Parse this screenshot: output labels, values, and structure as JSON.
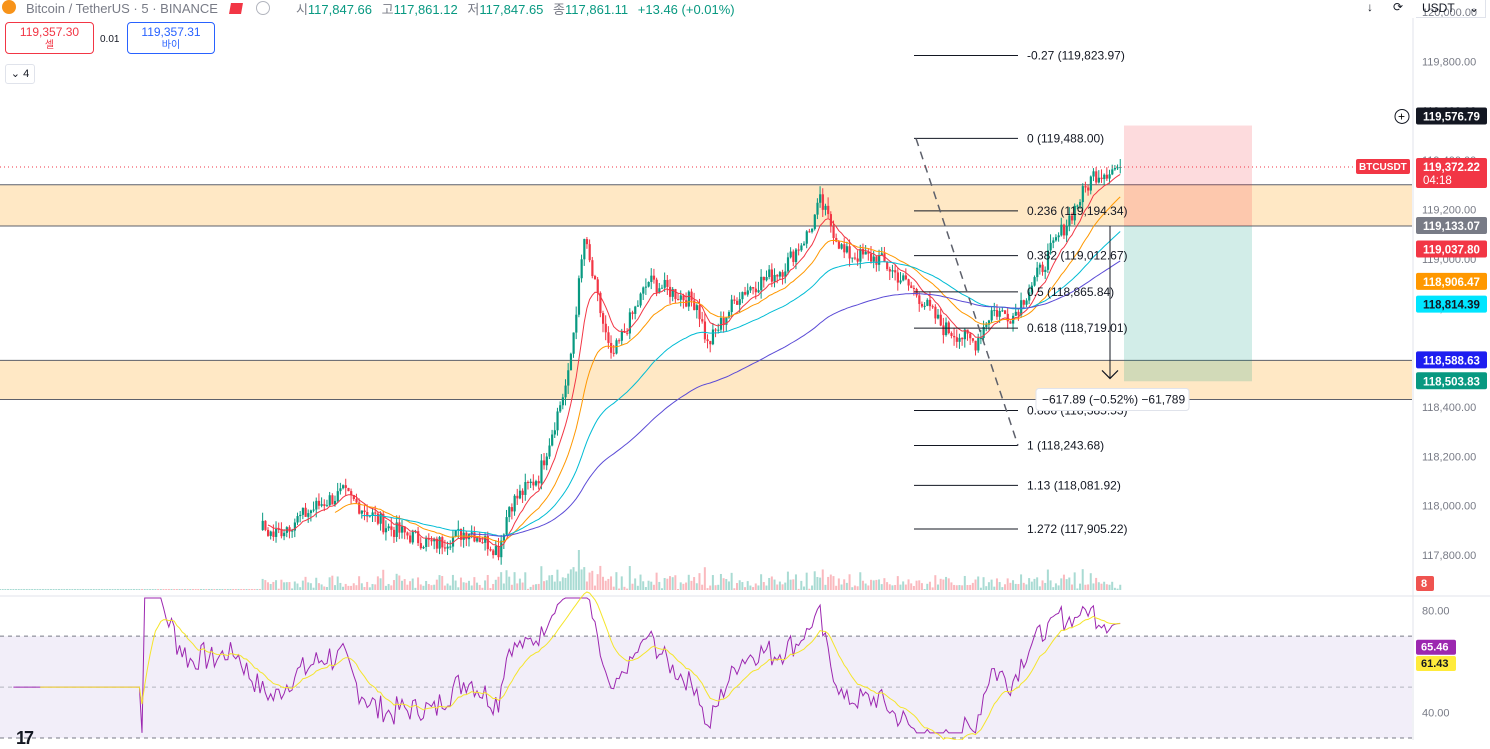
{
  "header": {
    "title": "Bitcoin / TetherUS · 5 · BINANCE",
    "open_label": "시",
    "open": "117,847.66",
    "high_label": "고",
    "high": "117,861.12",
    "low_label": "저",
    "low": "117,847.65",
    "close_label": "종",
    "close": "117,861.11",
    "change": "+13.46 (+0.01%)"
  },
  "trade": {
    "sell_price": "119,357.30",
    "sell_label": "셀",
    "buy_price": "119,357.31",
    "buy_label": "바이",
    "spread": "0.01"
  },
  "indicators_collapsed": "4",
  "currency": "USDT",
  "icons": {
    "down": "download-arrow-icon",
    "sync": "sync-icon",
    "add": "plus-circle-icon"
  },
  "colors": {
    "up": "#089981",
    "down": "#f23645",
    "ema_fast": "#f23645",
    "ema_mid": "#ff9800",
    "ema_slow": "#00bcd4",
    "ema_long": "#5b4bd6",
    "zone": "#ffe0b2",
    "rsi_line": "#9c27b0",
    "rsi_ma": "#f5e52b",
    "rsi_band": "#ede7f6"
  },
  "chart_data": [
    {
      "type": "candlestick",
      "instrument": "BTCUSDT",
      "interval": "5",
      "ylim": [
        117650,
        120000
      ],
      "y_ticks": [
        "117,800.00",
        "118,000.00",
        "118,200.00",
        "118,400.00",
        "118,600.00",
        "118,800.00",
        "119,000.00",
        "119,200.00",
        "119,400.00",
        "119,600.00",
        "119,800.00",
        "120,000.00"
      ],
      "anchors": [
        [
          0,
          117652,
          "flat"
        ],
        [
          53,
          117652,
          "flat"
        ],
        [
          58,
          117880,
          "up"
        ],
        [
          72,
          117860,
          "down"
        ],
        [
          88,
          117990,
          "up"
        ],
        [
          102,
          117880,
          "down"
        ],
        [
          120,
          118010,
          "up"
        ],
        [
          128,
          118050,
          "up"
        ],
        [
          145,
          117910,
          "down"
        ],
        [
          162,
          117840,
          "down"
        ],
        [
          175,
          117900,
          "up"
        ],
        [
          186,
          117820,
          "down"
        ],
        [
          190,
          118000,
          "up"
        ],
        [
          201,
          118120,
          "up"
        ],
        [
          212,
          118520,
          "up"
        ],
        [
          218,
          119080,
          "up"
        ],
        [
          228,
          118590,
          "down"
        ],
        [
          242,
          118910,
          "up"
        ],
        [
          260,
          118820,
          "down"
        ],
        [
          264,
          118650,
          "down"
        ],
        [
          276,
          118860,
          "up"
        ],
        [
          292,
          118960,
          "up"
        ],
        [
          302,
          119110,
          "up"
        ],
        [
          306,
          119230,
          "up"
        ],
        [
          315,
          119020,
          "down"
        ],
        [
          328,
          119000,
          "down"
        ],
        [
          342,
          118860,
          "down"
        ],
        [
          352,
          118720,
          "down"
        ],
        [
          364,
          118660,
          "down"
        ],
        [
          370,
          118790,
          "up"
        ],
        [
          378,
          118770,
          "down"
        ],
        [
          388,
          118950,
          "up"
        ],
        [
          395,
          119090,
          "up"
        ],
        [
          408,
          119340,
          "up"
        ],
        [
          418,
          119372,
          "up"
        ]
      ],
      "last_price": "119,372.22",
      "countdown": "04:18",
      "symbol_tag": "BTCUSDT",
      "volume_badge": "8",
      "price_labels": [
        {
          "value": "119,576.79",
          "price": 119576.79,
          "style": "crosshair"
        },
        {
          "value": "119,133.07",
          "price": 119133.07,
          "style": "gray"
        },
        {
          "value": "119,037.80",
          "price": 119037.8,
          "style": "red"
        },
        {
          "value": "118,906.47",
          "price": 118906.47,
          "style": "orange"
        },
        {
          "value": "118,814.39",
          "price": 118814.39,
          "style": "cyan"
        },
        {
          "value": "118,588.63",
          "price": 118588.63,
          "style": "blue"
        },
        {
          "value": "118,503.83",
          "price": 118503.83,
          "style": "green"
        }
      ],
      "zones": [
        [
          119133.07,
          119300
        ],
        [
          118430,
          118588.63
        ]
      ],
      "fibonacci": {
        "p0": 119488.0,
        "p1": 118243.68,
        "levels": [
          {
            "ratio": -0.27,
            "label": "-0.27 (119,823.97)"
          },
          {
            "ratio": 0,
            "label": "0 (119,488.00)"
          },
          {
            "ratio": 0.236,
            "label": "0.236 (119,194.34)"
          },
          {
            "ratio": 0.382,
            "label": "0.382 (119,012.67)"
          },
          {
            "ratio": 0.5,
            "label": "0.5 (118,865.84)"
          },
          {
            "ratio": 0.618,
            "label": "0.618 (118,719.01)"
          },
          {
            "ratio": 0.886,
            "label": "0.886 (118,385.53)"
          },
          {
            "ratio": 1,
            "label": "1 (118,243.68)"
          },
          {
            "ratio": 1.13,
            "label": "1.13 (118,081.92)"
          },
          {
            "ratio": 1.272,
            "label": "1.272 (117,905.22)"
          }
        ]
      },
      "position": {
        "entry": 119133.07,
        "stop": 119540,
        "target": 118503.83
      },
      "measure": {
        "from": 119133.07,
        "to": 118515.18,
        "label": "−617.89 (−0.52%) −61,789"
      }
    },
    {
      "type": "line",
      "name": "RSI",
      "ylim": [
        30,
        85
      ],
      "y_ticks": [
        "80.00",
        "40.00"
      ],
      "bands": [
        70,
        30
      ],
      "mid": 50,
      "value": "65.46",
      "ma_value": "61.43"
    }
  ]
}
